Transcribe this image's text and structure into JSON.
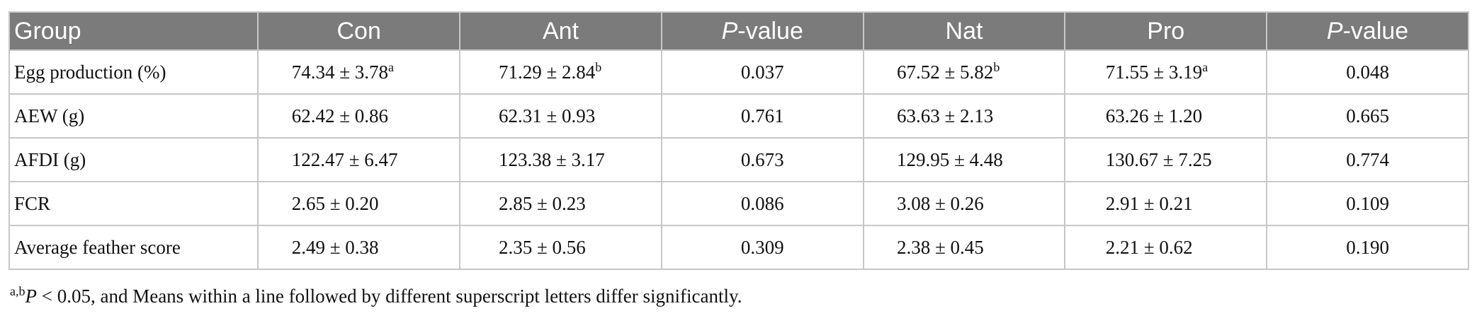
{
  "table": {
    "headers": {
      "group": "Group",
      "con": "Con",
      "ant": "Ant",
      "p1_italic": "P",
      "p1_rest": "-value",
      "nat": "Nat",
      "pro": "Pro",
      "p2_italic": "P",
      "p2_rest": "-value"
    },
    "rows": [
      {
        "label": "Egg production (%)",
        "con": "74.34 ± 3.78",
        "con_sup": "a",
        "ant": "71.29 ± 2.84",
        "ant_sup": "b",
        "p1": "0.037",
        "nat": "67.52 ± 5.82",
        "nat_sup": "b",
        "pro": "71.55 ± 3.19",
        "pro_sup": "a",
        "p2": "0.048"
      },
      {
        "label": "AEW (g)",
        "con": "62.42 ± 0.86",
        "con_sup": "",
        "ant": "62.31 ± 0.93",
        "ant_sup": "",
        "p1": "0.761",
        "nat": "63.63 ± 2.13",
        "nat_sup": "",
        "pro": "63.26 ± 1.20",
        "pro_sup": "",
        "p2": "0.665"
      },
      {
        "label": "AFDI (g)",
        "con": "122.47 ± 6.47",
        "con_sup": "",
        "ant": "123.38 ± 3.17",
        "ant_sup": "",
        "p1": "0.673",
        "nat": "129.95 ± 4.48",
        "nat_sup": "",
        "pro": "130.67 ± 7.25",
        "pro_sup": "",
        "p2": "0.774"
      },
      {
        "label": "FCR",
        "con": "2.65 ± 0.20",
        "con_sup": "",
        "ant": "2.85 ± 0.23",
        "ant_sup": "",
        "p1": "0.086",
        "nat": "3.08 ± 0.26",
        "nat_sup": "",
        "pro": "2.91 ± 0.21",
        "pro_sup": "",
        "p2": "0.109"
      },
      {
        "label": "Average feather score",
        "con": "2.49 ± 0.38",
        "con_sup": "",
        "ant": "2.35 ± 0.56",
        "ant_sup": "",
        "p1": "0.309",
        "nat": "2.38 ± 0.45",
        "nat_sup": "",
        "pro": "2.21 ± 0.62",
        "pro_sup": "",
        "p2": "0.190"
      }
    ]
  },
  "footnote": {
    "sup": "a,b",
    "p_italic": "P",
    "text": " < 0.05, and Means within a line followed by different superscript letters differ significantly."
  }
}
